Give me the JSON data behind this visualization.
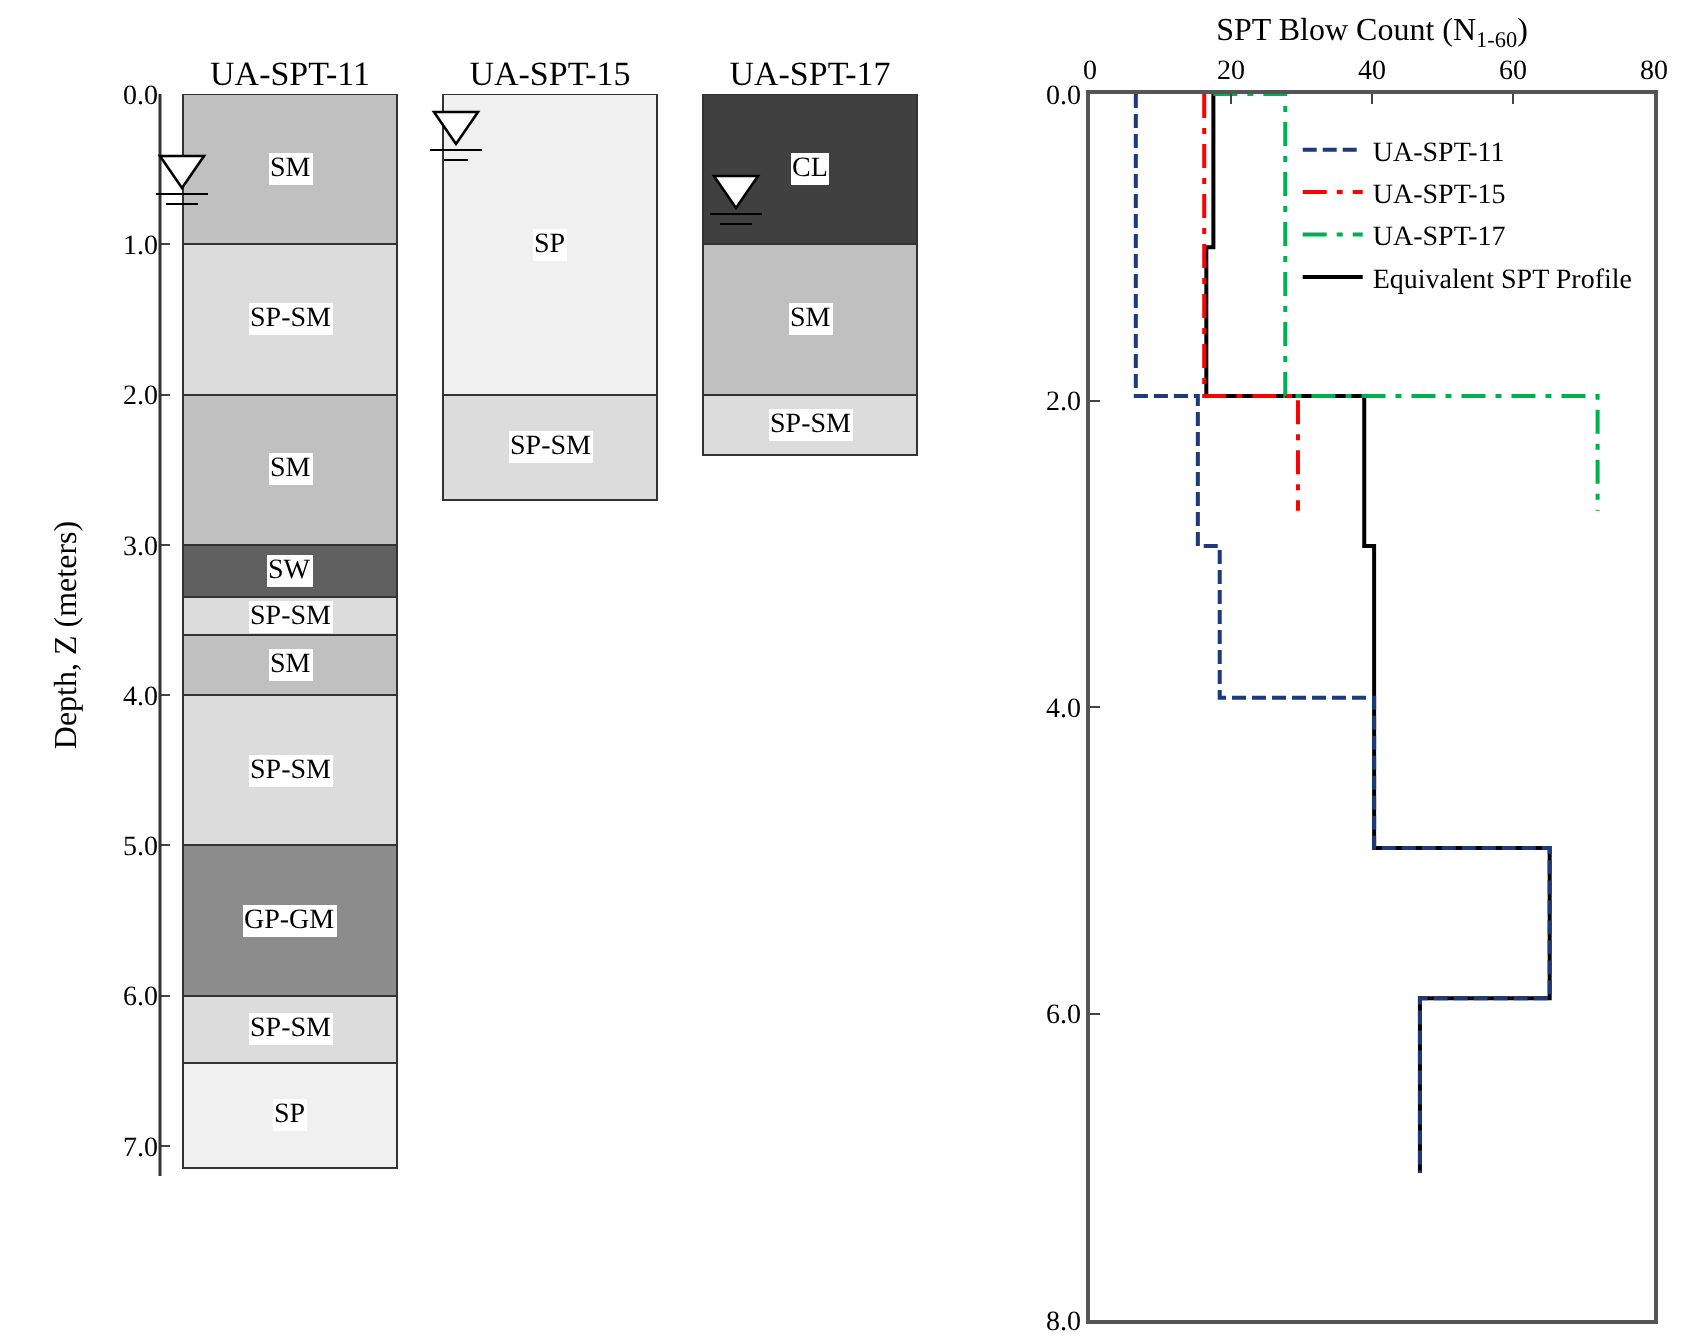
{
  "chart_data": [
    {
      "type": "bar",
      "stacked": true,
      "ylabel": "Depth, Z (meters)",
      "categories": [
        "UA-SPT-11",
        "UA-SPT-15",
        "UA-SPT-17"
      ],
      "ylim": [
        7.2,
        0
      ],
      "yticks": [
        {
          "value": 0,
          "label": "0.0"
        },
        {
          "value": 1,
          "label": "1.0"
        },
        {
          "value": 2,
          "label": "2.0"
        },
        {
          "value": 3,
          "label": "3.0"
        },
        {
          "value": 4,
          "label": "4.0"
        },
        {
          "value": 5,
          "label": "5.0"
        },
        {
          "value": 6,
          "label": "6.0"
        },
        {
          "value": 7,
          "label": "7.0"
        }
      ],
      "grid": false,
      "legend": false,
      "series": [
        {
          "values": [
            1.0,
            2.0,
            1.0
          ],
          "value_labels": [
            "SM",
            "SP",
            "CL"
          ],
          "colors": [
            "#c0c0c0",
            "#f0f0f0",
            "#404040"
          ]
        },
        {
          "values": [
            1.0,
            0.7,
            1.0
          ],
          "value_labels": [
            "SP-SM",
            "SP-SM",
            "SM"
          ],
          "colors": [
            "#dcdcdc",
            "#dcdcdc",
            "#c0c0c0"
          ]
        },
        {
          "values": [
            1.0,
            null,
            0.4
          ],
          "value_labels": [
            "SM",
            null,
            "SP-SM"
          ],
          "colors": [
            "#c0c0c0",
            "#dcdcdc",
            "#dcdcdc"
          ]
        },
        {
          "values": [
            0.35,
            null,
            null
          ],
          "value_labels": [
            "SW",
            null,
            null
          ],
          "colors": [
            "#606060",
            "#dcdcdc",
            "#dcdcdc"
          ]
        },
        {
          "values": [
            0.25,
            null,
            null
          ],
          "value_labels": [
            "SP-SM",
            null,
            null
          ],
          "colors": [
            "#dcdcdc",
            "#dcdcdc",
            "#dcdcdc"
          ]
        },
        {
          "values": [
            0.4,
            null,
            null
          ],
          "value_labels": [
            "SM",
            null,
            null
          ],
          "colors": [
            "#c0c0c0",
            "#dcdcdc",
            "#dcdcdc"
          ]
        },
        {
          "values": [
            1.0,
            null,
            null
          ],
          "value_labels": [
            "SP-SM",
            null,
            null
          ],
          "colors": [
            "#dcdcdc",
            "#dcdcdc",
            "#dcdcdc"
          ]
        },
        {
          "values": [
            1.0,
            null,
            null
          ],
          "value_labels": [
            "GP-GM",
            null,
            null
          ],
          "colors": [
            "#8c8c8c",
            "#dcdcdc",
            "#dcdcdc"
          ]
        },
        {
          "values": [
            0.45,
            null,
            null
          ],
          "value_labels": [
            "SP-SM",
            null,
            null
          ],
          "colors": [
            "#dcdcdc",
            "#dcdcdc",
            "#dcdcdc"
          ]
        },
        {
          "values": [
            0.7,
            null,
            null
          ],
          "value_labels": [
            "SP",
            null,
            null
          ],
          "colors": [
            "#f0f0f0",
            "#dcdcdc",
            "#dcdcdc"
          ]
        }
      ]
    },
    {
      "type": "line",
      "xlabel": "SPT Blow Count (N$_{1-60}$)",
      "xlim": [
        0,
        80
      ],
      "xticks": [
        0,
        20,
        40,
        60,
        80
      ],
      "ylim": [
        8,
        0
      ],
      "yticks": [
        {
          "value": 0,
          "label": "0.0"
        },
        {
          "value": 2,
          "label": "2.0"
        },
        {
          "value": 4,
          "label": "4.0"
        },
        {
          "value": 6,
          "label": "6.0"
        },
        {
          "value": 8,
          "label": "8.0"
        }
      ],
      "grid": false,
      "legend": "top right",
      "marker": "none",
      "series": [
        {
          "name": "UA-SPT-11",
          "color": "#1f3a7a",
          "line_style": "dashed",
          "x": [
            6.5,
            6.5,
            15.3,
            15.3,
            18.4,
            18.4,
            40.3,
            40.3,
            65.2,
            65.2,
            46.8,
            46.8
          ],
          "values": [
            0,
            1.97,
            1.97,
            2.95,
            2.95,
            3.94,
            3.94,
            4.92,
            4.92,
            5.9,
            5.9,
            7.04
          ]
        },
        {
          "name": "UA-SPT-15",
          "color": "#ff0000",
          "line_style": "dashdot",
          "x": [
            16.2,
            16.2,
            29.5,
            29.5
          ],
          "values": [
            0,
            1.97,
            1.97,
            2.72
          ]
        },
        {
          "name": "UA-SPT-17",
          "color": "#00b050",
          "line_style": "dashdot",
          "x": [
            17.5,
            27.7,
            27.7,
            72,
            72
          ],
          "values": [
            0,
            0,
            1.97,
            1.97,
            2.72
          ]
        },
        {
          "name": "Equivalent SPT Profile",
          "color": "#000000",
          "line_style": "solid",
          "x": [
            17.5,
            17.5,
            16.5,
            16.5,
            38.9,
            38.9,
            40.3,
            40.3,
            65.2,
            65.2,
            46.8,
            46.8
          ],
          "values": [
            0,
            1.0,
            1.0,
            1.97,
            1.97,
            2.95,
            2.95,
            4.92,
            4.92,
            5.9,
            5.9,
            7.04
          ]
        }
      ]
    }
  ]
}
